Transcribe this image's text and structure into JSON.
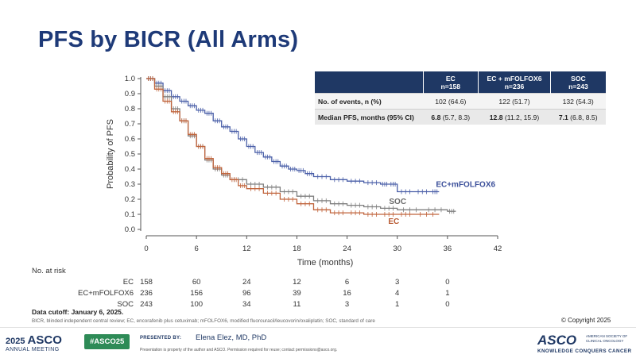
{
  "slide": {
    "title": "PFS by BICR (All Arms)"
  },
  "chart_data": {
    "type": "line",
    "title": "",
    "xlabel": "Time (months)",
    "ylabel": "Probability of PFS",
    "xlim": [
      0,
      42
    ],
    "ylim": [
      0,
      1.0
    ],
    "xticks": [
      "0",
      "6",
      "12",
      "18",
      "24",
      "30",
      "36",
      "42"
    ],
    "yticks": [
      "0.0",
      "0.1",
      "0.2",
      "0.3",
      "0.4",
      "0.5",
      "0.6",
      "0.7",
      "0.8",
      "0.9",
      "1.0"
    ],
    "series": [
      {
        "name": "EC+mFOLFOX6",
        "color": "#4a5fa8",
        "x": [
          0,
          1,
          2,
          3,
          4,
          5,
          6,
          7,
          8,
          9,
          10,
          11,
          12,
          13,
          14,
          15,
          16,
          17,
          18,
          19,
          20,
          22,
          24,
          26,
          28,
          29,
          30,
          32,
          34,
          35
        ],
        "y": [
          1.0,
          0.97,
          0.92,
          0.88,
          0.85,
          0.82,
          0.79,
          0.77,
          0.72,
          0.68,
          0.65,
          0.6,
          0.55,
          0.51,
          0.48,
          0.45,
          0.42,
          0.4,
          0.39,
          0.37,
          0.35,
          0.33,
          0.32,
          0.31,
          0.3,
          0.3,
          0.25,
          0.25,
          0.25,
          0.25
        ]
      },
      {
        "name": "SOC",
        "color": "#7f7f7f",
        "x": [
          0,
          1,
          2,
          3,
          4,
          5,
          6,
          7,
          8,
          9,
          10,
          12,
          14,
          16,
          18,
          20,
          22,
          24,
          26,
          28,
          30,
          33,
          36,
          37
        ],
        "y": [
          1.0,
          0.95,
          0.88,
          0.8,
          0.72,
          0.62,
          0.55,
          0.46,
          0.4,
          0.36,
          0.33,
          0.3,
          0.28,
          0.25,
          0.22,
          0.19,
          0.17,
          0.16,
          0.15,
          0.14,
          0.13,
          0.13,
          0.12,
          0.12
        ]
      },
      {
        "name": "EC",
        "color": "#c0643c",
        "x": [
          0,
          1,
          2,
          3,
          4,
          5,
          6,
          7,
          8,
          9,
          10,
          11,
          12,
          14,
          16,
          18,
          20,
          22,
          24,
          26,
          28,
          30,
          32,
          35
        ],
        "y": [
          1.0,
          0.93,
          0.85,
          0.78,
          0.72,
          0.63,
          0.55,
          0.47,
          0.41,
          0.37,
          0.33,
          0.29,
          0.27,
          0.24,
          0.2,
          0.17,
          0.13,
          0.11,
          0.11,
          0.1,
          0.1,
          0.1,
          0.1,
          0.1
        ]
      }
    ],
    "grid": false,
    "legend": "inline labels at curve ends"
  },
  "table": {
    "headers": [
      {
        "line1": "EC",
        "line2": "n=158"
      },
      {
        "line1": "EC + mFOLFOX6",
        "line2": "n=236"
      },
      {
        "line1": "SOC",
        "line2": "n=243"
      }
    ],
    "rows": [
      {
        "label": "No. of events, n (%)",
        "cells": [
          {
            "bold": "",
            "rest": "102 (64.6)"
          },
          {
            "bold": "",
            "rest": "122 (51.7)"
          },
          {
            "bold": "",
            "rest": "132 (54.3)"
          }
        ]
      },
      {
        "label": "Median PFS, months (95% CI)",
        "cells": [
          {
            "bold": "6.8",
            "rest": " (5.7, 8.3)"
          },
          {
            "bold": "12.8",
            "rest": " (11.2, 15.9)"
          },
          {
            "bold": "7.1",
            "rest": " (6.8, 8.5)"
          }
        ]
      }
    ]
  },
  "risk": {
    "header": "No. at risk",
    "rows": [
      {
        "label": "EC",
        "values": [
          "158",
          "60",
          "24",
          "12",
          "6",
          "3",
          "0"
        ]
      },
      {
        "label": "EC+mFOLFOX6",
        "values": [
          "236",
          "156",
          "96",
          "39",
          "16",
          "4",
          "1"
        ]
      },
      {
        "label": "SOC",
        "values": [
          "243",
          "100",
          "34",
          "11",
          "3",
          "1",
          "0"
        ]
      }
    ]
  },
  "notes": {
    "cutoff": "Data cutoff: January 6, 2025.",
    "abbreviations": "BICR, blinded independent central review; EC, encorafenib plus cetuximab; mFOLFOX6, modified fluorouracil/leucovorin/oxaliplatin; SOC, standard of care",
    "copyright": "© Copyright 2025"
  },
  "footer": {
    "year": "2025",
    "asco": "ASCO",
    "meeting": "ANNUAL MEETING",
    "hashtag": "#ASCO25",
    "presented_by": "PRESENTED BY:",
    "presenter": "Elena Elez, MD, PhD",
    "property_note": "Presentation is property of the author and ASCO. Permission required for reuse; contact permissions@asco.org.",
    "logo": "ASCO",
    "society": "AMERICAN SOCIETY OF CLINICAL ONCOLOGY",
    "tagline": "KNOWLEDGE CONQUERS CANCER"
  }
}
